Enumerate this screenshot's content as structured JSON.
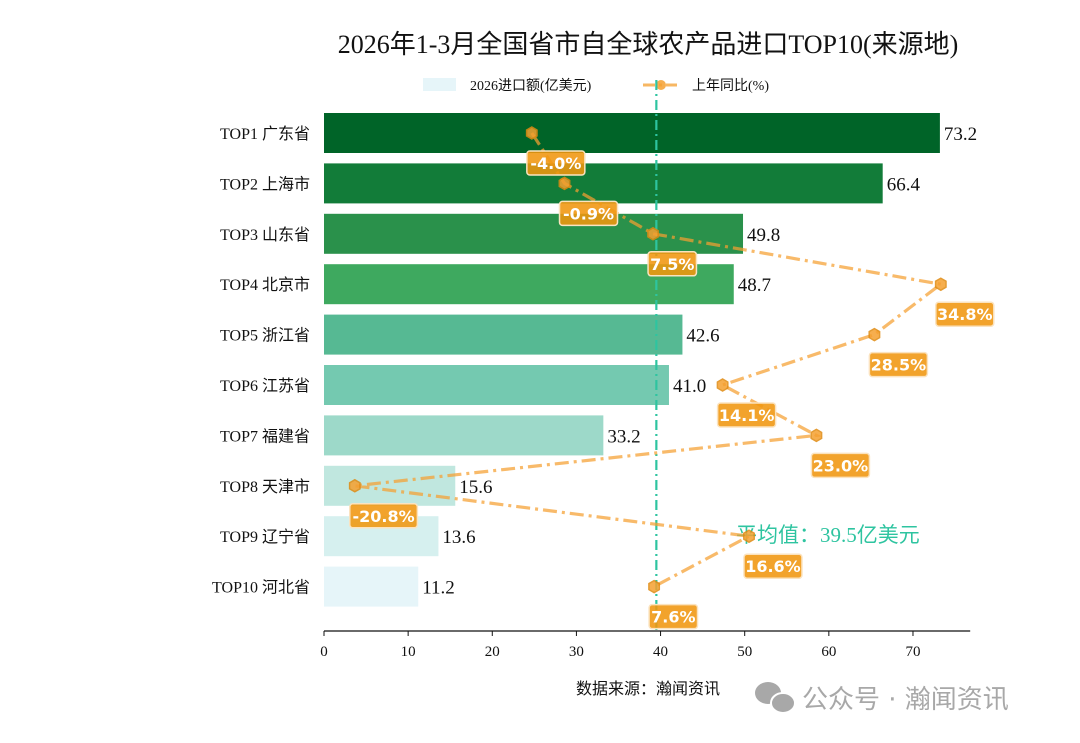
{
  "chart_data": {
    "type": "bar",
    "orientation": "horizontal",
    "title": "2026年1-3月全国省市自全球农产品进口TOP10(来源地)",
    "categories": [
      "TOP1 广东省",
      "TOP2 上海市",
      "TOP3 山东省",
      "TOP4 北京市",
      "TOP5 浙江省",
      "TOP6 江苏省",
      "TOP7 福建省",
      "TOP8 天津市",
      "TOP9 辽宁省",
      "TOP10 河北省"
    ],
    "series": [
      {
        "name": "2026进口额(亿美元)",
        "type": "bar",
        "values": [
          73.2,
          66.4,
          49.8,
          48.7,
          42.6,
          41.0,
          33.2,
          15.6,
          13.6,
          11.2
        ],
        "value_labels": [
          "73.2",
          "66.4",
          "49.8",
          "48.7",
          "42.6",
          "41.0",
          "33.2",
          "15.6",
          "13.6",
          "11.2"
        ],
        "colors": [
          "#006428",
          "#127c39",
          "#2a914b",
          "#3ea95f",
          "#56b993",
          "#74c9b0",
          "#9dd9c9",
          "#c0e7df",
          "#d6f0ef",
          "#e6f5f9"
        ]
      },
      {
        "name": "上年同比(%)",
        "type": "line",
        "values": [
          -4.0,
          -0.9,
          7.5,
          34.8,
          28.5,
          14.1,
          23.0,
          -20.8,
          16.6,
          7.6
        ],
        "value_labels": [
          "-4.0%",
          "-0.9%",
          "7.5%",
          "34.8%",
          "28.5%",
          "14.1%",
          "23.0%",
          "-20.8%",
          "16.6%",
          "7.6%"
        ],
        "color": "#f5a030"
      }
    ],
    "average": {
      "value": 39.5,
      "label": "平均值：39.5亿美元",
      "color": "#2ec4a0"
    },
    "xlim": [
      0,
      76.8
    ],
    "xticks": [
      "0",
      "10",
      "20",
      "30",
      "40",
      "50",
      "60",
      "70"
    ],
    "legend": "top-center",
    "grid": false
  },
  "source": "数据来源：瀚闻资讯",
  "watermark": "公众号 · 瀚闻资讯"
}
